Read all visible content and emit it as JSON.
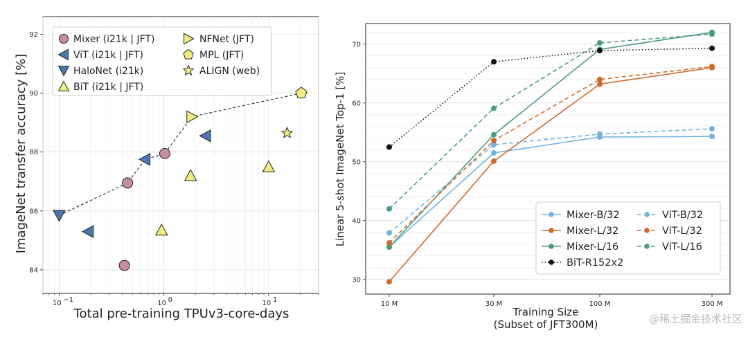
{
  "chart_data": [
    {
      "type": "scatter",
      "xscale": "log",
      "xlabel": "Total pre-training TPUv3-core-days",
      "ylabel": "ImageNet transfer accuracy [%]",
      "xlim": [
        0.07,
        30
      ],
      "ylim": [
        83.2,
        92.6
      ],
      "xticks": [
        {
          "value": 0.1,
          "base": "10",
          "exp": "−1"
        },
        {
          "value": 1,
          "base": "10",
          "exp": "0"
        },
        {
          "value": 10,
          "base": "10",
          "exp": "1"
        }
      ],
      "yticks": [
        84,
        86,
        88,
        90,
        92
      ],
      "series": [
        {
          "name": "Mixer (i21k | JFT)",
          "marker": "circle",
          "color": "#c88ba4",
          "points": [
            [
              0.42,
              84.15
            ],
            [
              0.45,
              86.95
            ],
            [
              1.02,
              87.95
            ]
          ]
        },
        {
          "name": "ViT (i21k | JFT)",
          "marker": "triangle-left",
          "color": "#4a78b0",
          "points": [
            [
              0.19,
              85.3
            ],
            [
              0.66,
              87.75
            ],
            [
              2.5,
              88.55
            ]
          ]
        },
        {
          "name": "HaloNet (i21k)",
          "marker": "triangle-down",
          "color": "#4a78b0",
          "points": [
            [
              0.1,
              85.85
            ]
          ]
        },
        {
          "name": "BiT (i21k | JFT)",
          "marker": "triangle-up",
          "color": "#f0ec82",
          "points": [
            [
              0.95,
              85.35
            ],
            [
              1.8,
              87.2
            ],
            [
              10.0,
              87.5
            ]
          ]
        },
        {
          "name": "NFNet (JFT)",
          "marker": "triangle-right",
          "color": "#f0ec82",
          "points": [
            [
              1.85,
              89.2
            ]
          ]
        },
        {
          "name": "MPL (JFT)",
          "marker": "pentagon",
          "color": "#f0ec82",
          "points": [
            [
              20.5,
              90.0
            ]
          ]
        },
        {
          "name": "ALIGN (web)",
          "marker": "star",
          "color": "#f0ec82",
          "points": [
            [
              15.0,
              88.65
            ]
          ]
        }
      ],
      "frontier": [
        [
          0.1,
          85.85
        ],
        [
          0.45,
          86.95
        ],
        [
          0.66,
          87.75
        ],
        [
          1.02,
          87.95
        ],
        [
          1.85,
          89.2
        ],
        [
          20.5,
          90.0
        ]
      ]
    },
    {
      "type": "line",
      "xlabel_line1": "Training Size",
      "xlabel_line2": "(Subset of JFT300M)",
      "ylabel": "Linear 5-shot ImageNet Top-1 [%]",
      "categories": [
        "10 M",
        "30 M",
        "100 M",
        "300 M"
      ],
      "ylim": [
        27.5,
        73.5
      ],
      "yticks": [
        30,
        40,
        50,
        60,
        70
      ],
      "series": [
        {
          "name": "Mixer-B/32",
          "color": "#6fb4df",
          "dash": false,
          "values": [
            35.5,
            51.5,
            54.2,
            54.3
          ]
        },
        {
          "name": "Mixer-L/32",
          "color": "#cf6a2b",
          "dash": false,
          "values": [
            29.6,
            50.1,
            63.2,
            66.0
          ]
        },
        {
          "name": "Mixer-L/16",
          "color": "#4c9c7c",
          "dash": false,
          "values": [
            35.5,
            54.6,
            69.1,
            72.0
          ]
        },
        {
          "name": "BiT-R152x2",
          "color": "#111111",
          "dash": "dot",
          "values": [
            52.5,
            67.0,
            68.9,
            69.3
          ]
        },
        {
          "name": "ViT-B/32",
          "color": "#6fb4df",
          "dash": true,
          "values": [
            37.9,
            52.9,
            54.7,
            55.6
          ]
        },
        {
          "name": "ViT-L/32",
          "color": "#cf6a2b",
          "dash": true,
          "values": [
            36.2,
            53.6,
            64.0,
            66.2
          ]
        },
        {
          "name": "ViT-L/16",
          "color": "#4c9c7c",
          "dash": true,
          "values": [
            42.0,
            59.1,
            70.2,
            71.7
          ]
        }
      ]
    }
  ],
  "watermark": "@稀土掘金技术社区"
}
